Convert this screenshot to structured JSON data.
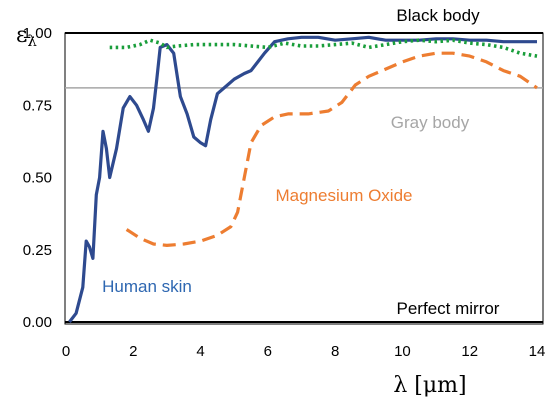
{
  "chart_data": {
    "type": "line",
    "xlabel": "λ [μm]",
    "ylabel_symbol": "ε",
    "ylabel_subscript": "λ",
    "xlim": [
      0,
      14
    ],
    "ylim": [
      0,
      1
    ],
    "x_ticks": [
      0,
      2,
      4,
      6,
      8,
      10,
      12,
      14
    ],
    "y_ticks": [
      0.0,
      0.25,
      0.5,
      0.75,
      1.0
    ],
    "y_tick_labels": [
      "0.00",
      "0.25",
      "0.50",
      "0.75",
      "1.00"
    ],
    "grid": false,
    "reference_lines": [
      {
        "label": "Black body",
        "y": 1.0,
        "color": "#000000"
      },
      {
        "label": "Gray body",
        "y": 0.81,
        "color": "#a6a6a6"
      },
      {
        "label": "Perfect mirror",
        "y": 0.0,
        "color": "#000000"
      }
    ],
    "series": [
      {
        "name": "Human skin",
        "color": "#2e4a8f",
        "style": "solid",
        "points": [
          [
            0.1,
            0.0
          ],
          [
            0.3,
            0.03
          ],
          [
            0.5,
            0.12
          ],
          [
            0.6,
            0.28
          ],
          [
            0.7,
            0.26
          ],
          [
            0.8,
            0.22
          ],
          [
            0.9,
            0.44
          ],
          [
            1.0,
            0.5
          ],
          [
            1.1,
            0.66
          ],
          [
            1.2,
            0.6
          ],
          [
            1.3,
            0.5
          ],
          [
            1.5,
            0.6
          ],
          [
            1.7,
            0.74
          ],
          [
            1.9,
            0.78
          ],
          [
            2.1,
            0.75
          ],
          [
            2.3,
            0.7
          ],
          [
            2.45,
            0.66
          ],
          [
            2.6,
            0.74
          ],
          [
            2.7,
            0.84
          ],
          [
            2.8,
            0.95
          ],
          [
            3.0,
            0.96
          ],
          [
            3.2,
            0.93
          ],
          [
            3.4,
            0.78
          ],
          [
            3.6,
            0.72
          ],
          [
            3.8,
            0.64
          ],
          [
            4.0,
            0.62
          ],
          [
            4.15,
            0.61
          ],
          [
            4.3,
            0.7
          ],
          [
            4.5,
            0.79
          ],
          [
            4.8,
            0.82
          ],
          [
            5.0,
            0.84
          ],
          [
            5.3,
            0.86
          ],
          [
            5.5,
            0.87
          ],
          [
            5.7,
            0.9
          ],
          [
            5.9,
            0.93
          ],
          [
            6.2,
            0.97
          ],
          [
            6.6,
            0.98
          ],
          [
            7.0,
            0.985
          ],
          [
            7.5,
            0.985
          ],
          [
            8.0,
            0.975
          ],
          [
            8.5,
            0.98
          ],
          [
            9.0,
            0.985
          ],
          [
            9.5,
            0.975
          ],
          [
            10.0,
            0.975
          ],
          [
            10.5,
            0.975
          ],
          [
            11.0,
            0.98
          ],
          [
            11.5,
            0.98
          ],
          [
            12.0,
            0.975
          ],
          [
            12.5,
            0.975
          ],
          [
            13.0,
            0.97
          ],
          [
            13.5,
            0.97
          ],
          [
            14.0,
            0.97
          ]
        ]
      },
      {
        "name": "Magnesium Oxide",
        "color": "#ed7d31",
        "style": "dashed",
        "points": [
          [
            1.8,
            0.32
          ],
          [
            2.2,
            0.29
          ],
          [
            2.6,
            0.27
          ],
          [
            3.0,
            0.265
          ],
          [
            3.5,
            0.27
          ],
          [
            4.0,
            0.28
          ],
          [
            4.5,
            0.3
          ],
          [
            4.9,
            0.33
          ],
          [
            5.1,
            0.38
          ],
          [
            5.3,
            0.5
          ],
          [
            5.5,
            0.62
          ],
          [
            5.8,
            0.68
          ],
          [
            6.2,
            0.71
          ],
          [
            6.6,
            0.72
          ],
          [
            7.2,
            0.72
          ],
          [
            7.8,
            0.73
          ],
          [
            8.2,
            0.76
          ],
          [
            8.6,
            0.82
          ],
          [
            9.0,
            0.85
          ],
          [
            9.4,
            0.87
          ],
          [
            10.0,
            0.9
          ],
          [
            10.5,
            0.92
          ],
          [
            11.0,
            0.93
          ],
          [
            11.5,
            0.93
          ],
          [
            12.0,
            0.92
          ],
          [
            12.5,
            0.9
          ],
          [
            13.0,
            0.87
          ],
          [
            13.5,
            0.85
          ],
          [
            14.0,
            0.81
          ]
        ]
      },
      {
        "name": "",
        "color": "#1a9e3b",
        "style": "dotted",
        "points": [
          [
            1.3,
            0.95
          ],
          [
            1.8,
            0.95
          ],
          [
            2.2,
            0.96
          ],
          [
            2.5,
            0.975
          ],
          [
            2.8,
            0.965
          ],
          [
            3.0,
            0.95
          ],
          [
            3.3,
            0.955
          ],
          [
            3.8,
            0.96
          ],
          [
            4.5,
            0.96
          ],
          [
            5.0,
            0.96
          ],
          [
            5.5,
            0.955
          ],
          [
            6.0,
            0.95
          ],
          [
            6.5,
            0.965
          ],
          [
            7.0,
            0.955
          ],
          [
            7.5,
            0.955
          ],
          [
            8.0,
            0.96
          ],
          [
            8.5,
            0.965
          ],
          [
            9.0,
            0.95
          ],
          [
            9.5,
            0.96
          ],
          [
            10.0,
            0.97
          ],
          [
            10.5,
            0.975
          ],
          [
            11.0,
            0.97
          ],
          [
            11.5,
            0.975
          ],
          [
            12.0,
            0.965
          ],
          [
            12.5,
            0.96
          ],
          [
            13.0,
            0.95
          ],
          [
            13.5,
            0.93
          ],
          [
            14.0,
            0.92
          ]
        ]
      }
    ],
    "annotations": [
      {
        "text": "Black body",
        "color": "#000000"
      },
      {
        "text": "Gray body",
        "color": "#a6a6a6"
      },
      {
        "text": "Magnesium Oxide",
        "color": "#ed7d31"
      },
      {
        "text": "Human skin",
        "color": "#2e67b1"
      },
      {
        "text": "Perfect mirror",
        "color": "#000000"
      }
    ]
  }
}
